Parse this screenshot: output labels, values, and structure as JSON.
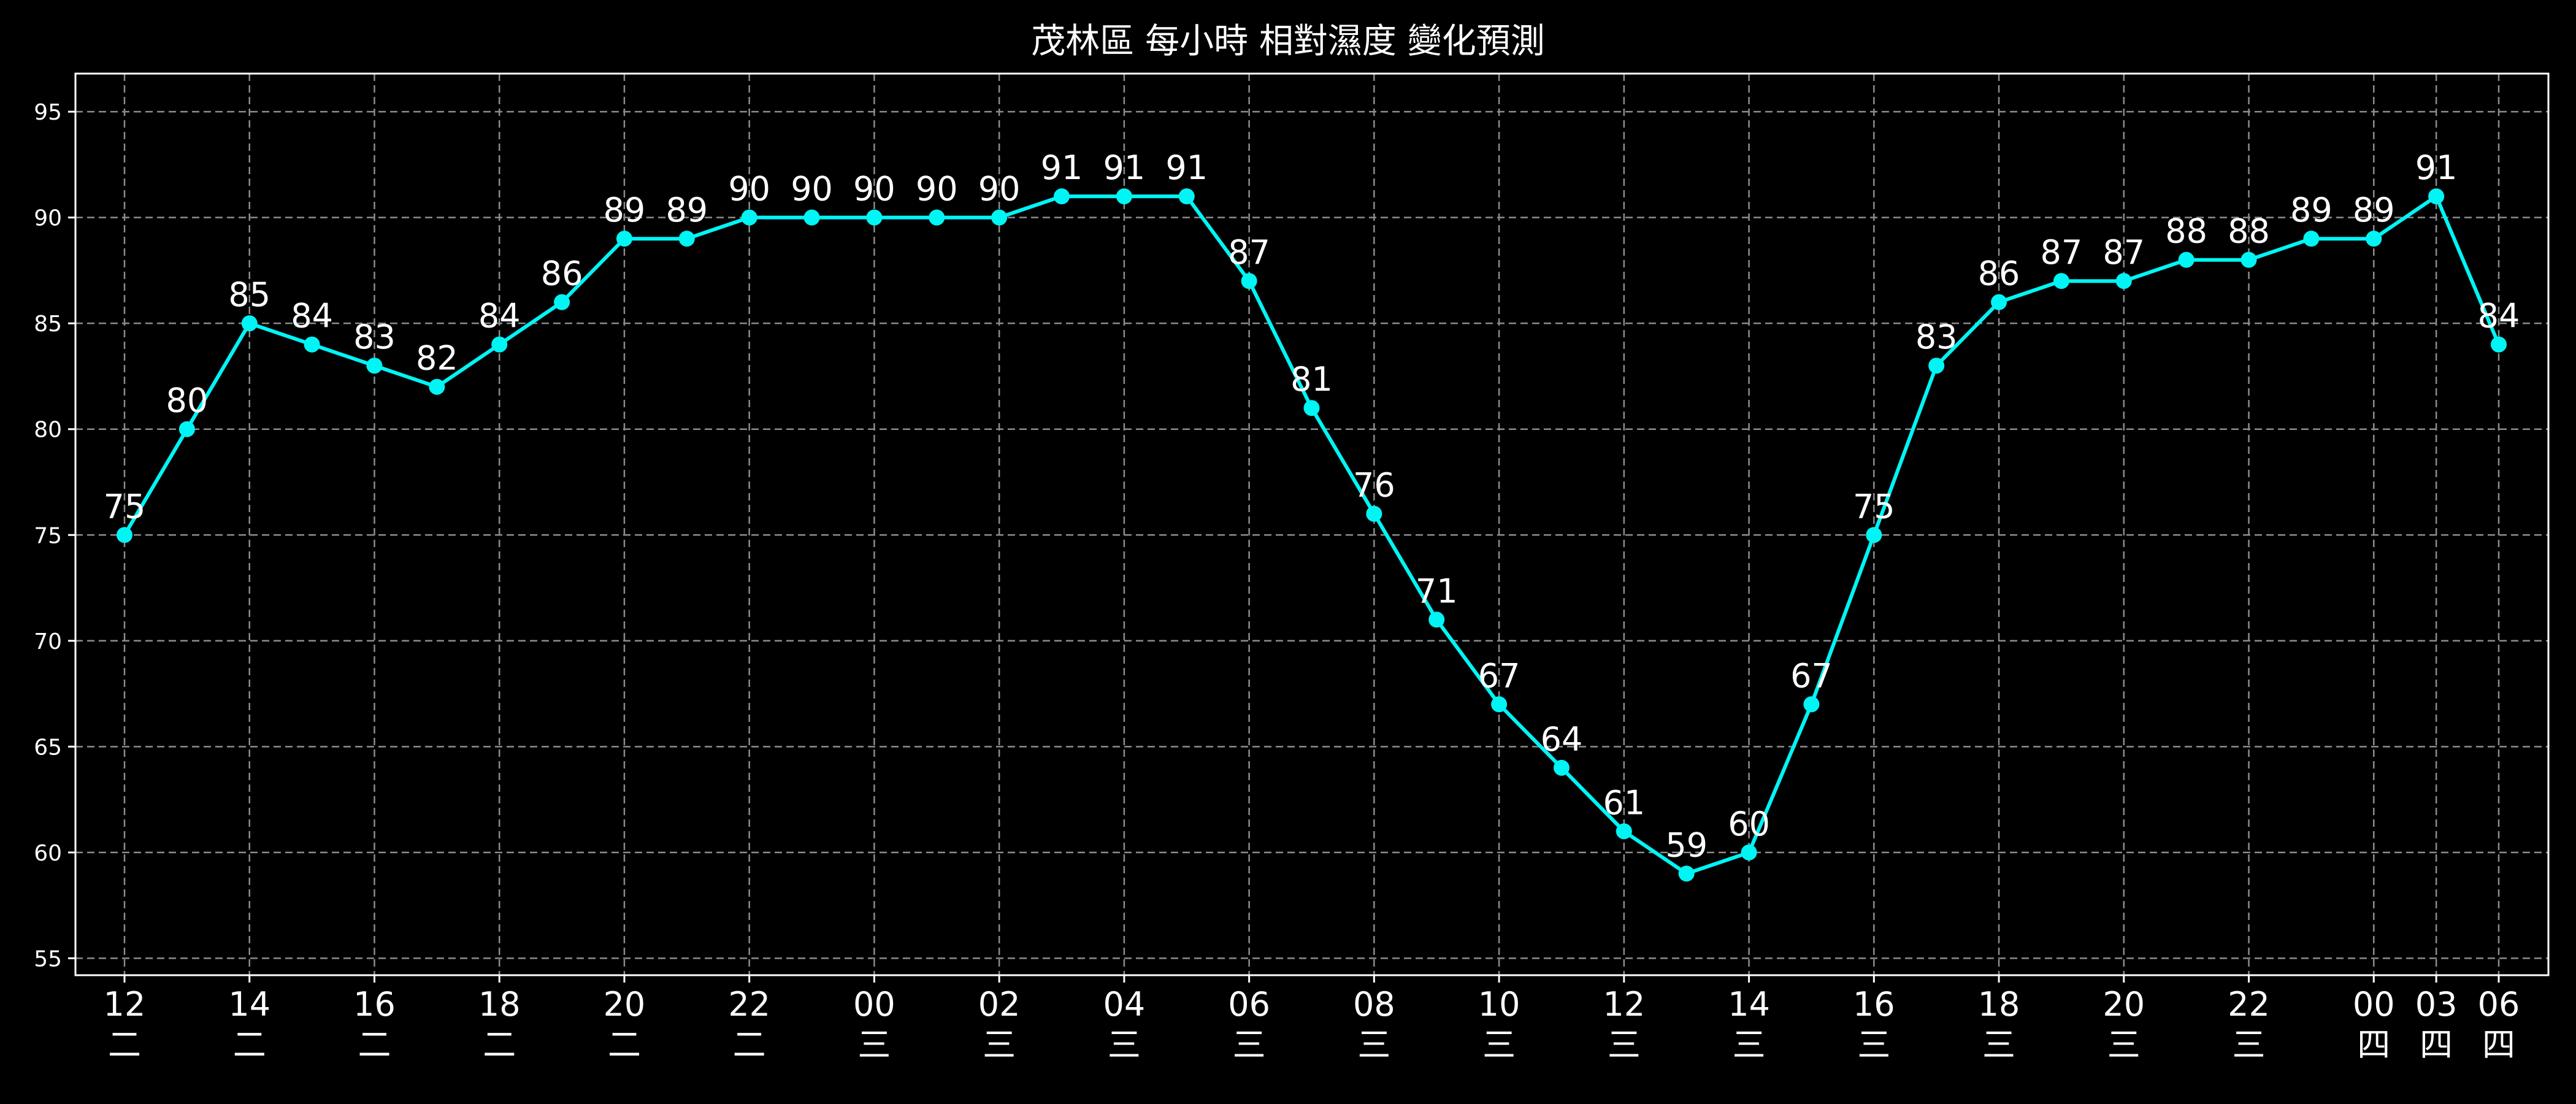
{
  "chart_data": {
    "type": "line",
    "title": "茂林區 每小時 相對濕度 變化預測",
    "xlabel": "",
    "ylabel": "",
    "ylim": [
      54.2,
      96.8
    ],
    "yticks": [
      55,
      60,
      65,
      70,
      75,
      80,
      85,
      90,
      95
    ],
    "grid": true,
    "colors": {
      "background": "#000000",
      "line": "#00f5f5",
      "marker": "#00f5f5",
      "text": "#ffffff",
      "grid": "#8c8c8c",
      "frame": "#ffffff"
    },
    "points": [
      {
        "hour": "12",
        "day": "二",
        "value": 75
      },
      {
        "hour": "13",
        "day": "二",
        "value": 80
      },
      {
        "hour": "14",
        "day": "二",
        "value": 85
      },
      {
        "hour": "15",
        "day": "二",
        "value": 84
      },
      {
        "hour": "16",
        "day": "二",
        "value": 83
      },
      {
        "hour": "17",
        "day": "二",
        "value": 82
      },
      {
        "hour": "18",
        "day": "二",
        "value": 84
      },
      {
        "hour": "19",
        "day": "二",
        "value": 86
      },
      {
        "hour": "20",
        "day": "二",
        "value": 89
      },
      {
        "hour": "21",
        "day": "二",
        "value": 89
      },
      {
        "hour": "22",
        "day": "二",
        "value": 90
      },
      {
        "hour": "23",
        "day": "二",
        "value": 90
      },
      {
        "hour": "00",
        "day": "三",
        "value": 90
      },
      {
        "hour": "01",
        "day": "三",
        "value": 90
      },
      {
        "hour": "02",
        "day": "三",
        "value": 90
      },
      {
        "hour": "03",
        "day": "三",
        "value": 91
      },
      {
        "hour": "04",
        "day": "三",
        "value": 91
      },
      {
        "hour": "05",
        "day": "三",
        "value": 91
      },
      {
        "hour": "06",
        "day": "三",
        "value": 87
      },
      {
        "hour": "07",
        "day": "三",
        "value": 81
      },
      {
        "hour": "08",
        "day": "三",
        "value": 76
      },
      {
        "hour": "09",
        "day": "三",
        "value": 71
      },
      {
        "hour": "10",
        "day": "三",
        "value": 67
      },
      {
        "hour": "11",
        "day": "三",
        "value": 64
      },
      {
        "hour": "12",
        "day": "三",
        "value": 61
      },
      {
        "hour": "13",
        "day": "三",
        "value": 59
      },
      {
        "hour": "14",
        "day": "三",
        "value": 60
      },
      {
        "hour": "15",
        "day": "三",
        "value": 67
      },
      {
        "hour": "16",
        "day": "三",
        "value": 75
      },
      {
        "hour": "17",
        "day": "三",
        "value": 83
      },
      {
        "hour": "18",
        "day": "三",
        "value": 86
      },
      {
        "hour": "19",
        "day": "三",
        "value": 87
      },
      {
        "hour": "20",
        "day": "三",
        "value": 87
      },
      {
        "hour": "21",
        "day": "三",
        "value": 88
      },
      {
        "hour": "22",
        "day": "三",
        "value": 88
      },
      {
        "hour": "23",
        "day": "三",
        "value": 89
      },
      {
        "hour": "00",
        "day": "四",
        "value": 89
      },
      {
        "hour": "03",
        "day": "四",
        "value": 91
      },
      {
        "hour": "06",
        "day": "四",
        "value": 84
      }
    ],
    "x_tick_indices": [
      0,
      2,
      4,
      6,
      8,
      10,
      12,
      14,
      16,
      18,
      20,
      22,
      24,
      26,
      28,
      30,
      32,
      34,
      36,
      37,
      38
    ]
  }
}
